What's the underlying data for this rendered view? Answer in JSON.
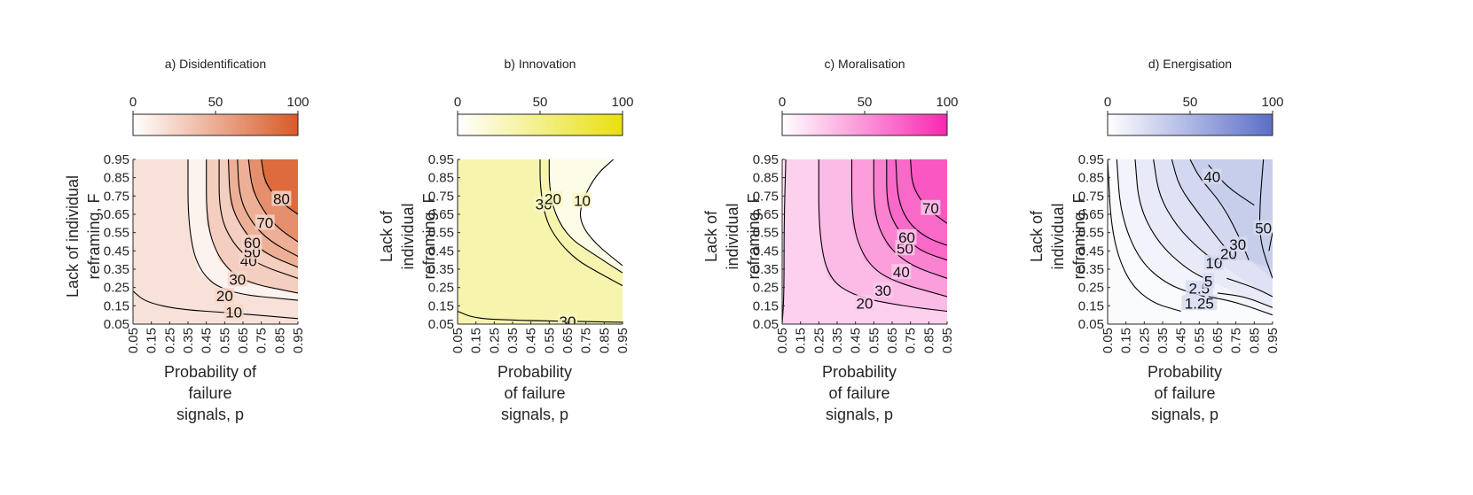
{
  "chart_data": [
    {
      "type": "heatmap",
      "subtype": "contour",
      "title": "a) Disidentification",
      "xlabel_lines": [
        "Probability of",
        "failure",
        "signals, p"
      ],
      "ylabel_lines": [
        "Lack of individual",
        "reframing, F"
      ],
      "x_ticks": [
        "0.05",
        "0.15",
        "0.25",
        "0.35",
        "0.45",
        "0.55",
        "0.65",
        "0.75",
        "0.85",
        "0.95"
      ],
      "y_ticks": [
        "0.05",
        "0.15",
        "0.25",
        "0.35",
        "0.45",
        "0.55",
        "0.65",
        "0.75",
        "0.85",
        "0.95"
      ],
      "xlim": [
        0.05,
        0.95
      ],
      "ylim": [
        0.05,
        0.95
      ],
      "colorbar": {
        "min": 0,
        "max": 100,
        "ticks": [
          "0",
          "50",
          "100"
        ],
        "low_color": "#ffffff",
        "high_color": "#d95a27"
      },
      "contour_levels": [
        {
          "level": 10,
          "points": [
            [
              0.05,
              0.23
            ],
            [
              0.12,
              0.17
            ],
            [
              0.3,
              0.13
            ],
            [
              0.6,
              0.11
            ],
            [
              0.95,
              0.08
            ]
          ],
          "label": "10",
          "label_at": [
            0.6,
            0.11
          ]
        },
        {
          "level": 20,
          "points": [
            [
              0.35,
              0.95
            ],
            [
              0.35,
              0.6
            ],
            [
              0.4,
              0.35
            ],
            [
              0.55,
              0.22
            ],
            [
              0.95,
              0.18
            ]
          ],
          "label": "20",
          "label_at": [
            0.55,
            0.2
          ]
        },
        {
          "level": 30,
          "points": [
            [
              0.45,
              0.95
            ],
            [
              0.45,
              0.6
            ],
            [
              0.52,
              0.4
            ],
            [
              0.65,
              0.28
            ],
            [
              0.95,
              0.22
            ]
          ],
          "label": "30",
          "label_at": [
            0.62,
            0.29
          ]
        },
        {
          "level": 40,
          "points": [
            [
              0.52,
              0.95
            ],
            [
              0.52,
              0.65
            ],
            [
              0.6,
              0.48
            ],
            [
              0.72,
              0.38
            ],
            [
              0.95,
              0.3
            ]
          ],
          "label": "40",
          "label_at": [
            0.68,
            0.39
          ]
        },
        {
          "level": 50,
          "points": [
            [
              0.57,
              0.95
            ],
            [
              0.58,
              0.7
            ],
            [
              0.66,
              0.55
            ],
            [
              0.76,
              0.44
            ],
            [
              0.95,
              0.36
            ]
          ],
          "label": "50",
          "label_at": [
            0.7,
            0.44
          ]
        },
        {
          "level": 60,
          "points": [
            [
              0.62,
              0.95
            ],
            [
              0.63,
              0.74
            ],
            [
              0.7,
              0.6
            ],
            [
              0.8,
              0.5
            ],
            [
              0.95,
              0.42
            ]
          ],
          "label": "60",
          "label_at": [
            0.7,
            0.49
          ]
        },
        {
          "level": 70,
          "points": [
            [
              0.68,
              0.95
            ],
            [
              0.7,
              0.78
            ],
            [
              0.78,
              0.64
            ],
            [
              0.86,
              0.56
            ],
            [
              0.95,
              0.5
            ]
          ],
          "label": "70",
          "label_at": [
            0.77,
            0.6
          ]
        },
        {
          "level": 80,
          "points": [
            [
              0.75,
              0.95
            ],
            [
              0.77,
              0.82
            ],
            [
              0.85,
              0.72
            ],
            [
              0.95,
              0.65
            ]
          ],
          "label": "80",
          "label_at": [
            0.86,
            0.73
          ]
        }
      ]
    },
    {
      "type": "heatmap",
      "subtype": "contour",
      "title": "b) Innovation",
      "xlabel_lines": [
        "Probability",
        "of failure",
        "signals, p"
      ],
      "ylabel_lines": [
        "Lack of",
        "individual",
        "reframing, F"
      ],
      "x_ticks": [
        "0.05",
        "0.15",
        "0.25",
        "0.35",
        "0.45",
        "0.55",
        "0.65",
        "0.75",
        "0.85",
        "0.95"
      ],
      "y_ticks": [
        "0.05",
        "0.15",
        "0.25",
        "0.35",
        "0.45",
        "0.55",
        "0.65",
        "0.75",
        "0.85",
        "0.95"
      ],
      "xlim": [
        0.05,
        0.95
      ],
      "ylim": [
        0.05,
        0.95
      ],
      "colorbar": {
        "min": 0,
        "max": 100,
        "ticks": [
          "0",
          "50",
          "100"
        ],
        "low_color": "#ffffff",
        "high_color": "#e8e010"
      },
      "contour_levels": [
        {
          "level": 30,
          "points": [
            [
              0.05,
              0.12
            ],
            [
              0.15,
              0.08
            ],
            [
              0.4,
              0.07
            ],
            [
              0.7,
              0.065
            ],
            [
              0.95,
              0.06
            ]
          ],
          "label": "30",
          "label_at": [
            0.65,
            0.06
          ]
        },
        {
          "level": 30,
          "points": [
            [
              0.5,
              0.95
            ],
            [
              0.5,
              0.8
            ],
            [
              0.53,
              0.62
            ],
            [
              0.6,
              0.5
            ],
            [
              0.7,
              0.4
            ],
            [
              0.82,
              0.33
            ],
            [
              0.95,
              0.26
            ]
          ],
          "label": "30",
          "label_at": [
            0.52,
            0.7
          ]
        },
        {
          "level": 20,
          "points": [
            [
              0.55,
              0.95
            ],
            [
              0.55,
              0.8
            ],
            [
              0.58,
              0.65
            ],
            [
              0.66,
              0.52
            ],
            [
              0.78,
              0.44
            ],
            [
              0.95,
              0.33
            ]
          ],
          "label": "20",
          "label_at": [
            0.57,
            0.73
          ]
        },
        {
          "level": 10,
          "points": [
            [
              0.9,
              0.95
            ],
            [
              0.8,
              0.86
            ],
            [
              0.72,
              0.7
            ],
            [
              0.72,
              0.6
            ],
            [
              0.8,
              0.49
            ],
            [
              0.95,
              0.37
            ]
          ],
          "label": "10",
          "label_at": [
            0.73,
            0.72
          ]
        }
      ]
    },
    {
      "type": "heatmap",
      "subtype": "contour",
      "title": "c) Moralisation",
      "xlabel_lines": [
        "Probability",
        "of failure",
        "signals, p"
      ],
      "ylabel_lines": [
        "Lack of",
        "individual",
        "reframing, F"
      ],
      "x_ticks": [
        "0.05",
        "0.15",
        "0.25",
        "0.35",
        "0.45",
        "0.55",
        "0.65",
        "0.75",
        "0.85",
        "0.95"
      ],
      "y_ticks": [
        "0.05",
        "0.15",
        "0.25",
        "0.35",
        "0.45",
        "0.55",
        "0.65",
        "0.75",
        "0.85",
        "0.95"
      ],
      "xlim": [
        0.05,
        0.95
      ],
      "ylim": [
        0.05,
        0.95
      ],
      "colorbar": {
        "min": 0,
        "max": 100,
        "ticks": [
          "0",
          "50",
          "100"
        ],
        "low_color": "#ffffff",
        "high_color": "#f728b0"
      },
      "contour_levels": [
        {
          "level": 10,
          "points": [
            [
              0.07,
              0.95
            ],
            [
              0.06,
              0.6
            ],
            [
              0.06,
              0.2
            ],
            [
              0.05,
              0.05
            ]
          ],
          "label": "",
          "label_at": null
        },
        {
          "level": 20,
          "points": [
            [
              0.25,
              0.95
            ],
            [
              0.25,
              0.55
            ],
            [
              0.3,
              0.3
            ],
            [
              0.45,
              0.2
            ],
            [
              0.7,
              0.15
            ],
            [
              0.95,
              0.12
            ]
          ],
          "label": "20",
          "label_at": [
            0.5,
            0.16
          ]
        },
        {
          "level": 30,
          "points": [
            [
              0.43,
              0.95
            ],
            [
              0.43,
              0.6
            ],
            [
              0.5,
              0.4
            ],
            [
              0.63,
              0.29
            ],
            [
              0.95,
              0.2
            ]
          ],
          "label": "30",
          "label_at": [
            0.6,
            0.23
          ]
        },
        {
          "level": 40,
          "points": [
            [
              0.55,
              0.95
            ],
            [
              0.55,
              0.65
            ],
            [
              0.62,
              0.48
            ],
            [
              0.75,
              0.37
            ],
            [
              0.95,
              0.3
            ]
          ],
          "label": "40",
          "label_at": [
            0.7,
            0.33
          ]
        },
        {
          "level": 50,
          "points": [
            [
              0.62,
              0.95
            ],
            [
              0.62,
              0.7
            ],
            [
              0.68,
              0.56
            ],
            [
              0.8,
              0.45
            ],
            [
              0.95,
              0.4
            ]
          ],
          "label": "50",
          "label_at": [
            0.72,
            0.46
          ]
        },
        {
          "level": 60,
          "points": [
            [
              0.67,
              0.95
            ],
            [
              0.68,
              0.73
            ],
            [
              0.74,
              0.6
            ],
            [
              0.84,
              0.52
            ],
            [
              0.95,
              0.48
            ]
          ],
          "label": "60",
          "label_at": [
            0.73,
            0.52
          ]
        },
        {
          "level": 70,
          "points": [
            [
              0.75,
              0.95
            ],
            [
              0.76,
              0.8
            ],
            [
              0.84,
              0.68
            ],
            [
              0.95,
              0.6
            ]
          ],
          "label": "70",
          "label_at": [
            0.86,
            0.68
          ]
        }
      ]
    },
    {
      "type": "heatmap",
      "subtype": "contour",
      "title": "d) Energisation",
      "xlabel_lines": [
        "Probability",
        "of failure",
        "signals, p"
      ],
      "ylabel_lines": [
        "Lack of",
        "individual",
        "reframing, F"
      ],
      "x_ticks": [
        "0.05",
        "0.15",
        "0.25",
        "0.35",
        "0.45",
        "0.55",
        "0.65",
        "0.75",
        "0.85",
        "0.95"
      ],
      "y_ticks": [
        "0.05",
        "0.15",
        "0.25",
        "0.35",
        "0.45",
        "0.55",
        "0.65",
        "0.75",
        "0.85",
        "0.95"
      ],
      "xlim": [
        0.05,
        0.95
      ],
      "ylim": [
        0.05,
        0.95
      ],
      "colorbar": {
        "min": 0,
        "max": 100,
        "ticks": [
          "0",
          "50",
          "100"
        ],
        "low_color": "#ffffff",
        "high_color": "#5b6ec8"
      },
      "contour_levels": [
        {
          "level": 1.25,
          "points": [
            [
              0.05,
              0.95
            ],
            [
              0.07,
              0.55
            ],
            [
              0.15,
              0.3
            ],
            [
              0.28,
              0.17
            ],
            [
              0.45,
              0.12
            ]
          ],
          "label": "1.25",
          "label_at": [
            0.55,
            0.16
          ]
        },
        {
          "level": 2.5,
          "points": [
            [
              0.1,
              0.95
            ],
            [
              0.12,
              0.65
            ],
            [
              0.22,
              0.4
            ],
            [
              0.38,
              0.26
            ],
            [
              0.58,
              0.2
            ]
          ],
          "label": "2.5",
          "label_at": [
            0.55,
            0.24
          ]
        },
        {
          "level": 5,
          "points": [
            [
              0.2,
              0.95
            ],
            [
              0.22,
              0.7
            ],
            [
              0.32,
              0.5
            ],
            [
              0.48,
              0.35
            ],
            [
              0.62,
              0.28
            ]
          ],
          "label": "5",
          "label_at": [
            0.6,
            0.28
          ]
        },
        {
          "level": 10,
          "points": [
            [
              0.3,
              0.95
            ],
            [
              0.33,
              0.75
            ],
            [
              0.43,
              0.58
            ],
            [
              0.56,
              0.45
            ],
            [
              0.66,
              0.38
            ]
          ],
          "label": "10",
          "label_at": [
            0.63,
            0.38
          ]
        },
        {
          "level": 20,
          "points": [
            [
              0.4,
              0.95
            ],
            [
              0.44,
              0.8
            ],
            [
              0.55,
              0.65
            ],
            [
              0.68,
              0.48
            ],
            [
              0.75,
              0.4
            ]
          ],
          "label": "20",
          "label_at": [
            0.71,
            0.43
          ]
        },
        {
          "level": 30,
          "points": [
            [
              0.5,
              0.95
            ],
            [
              0.55,
              0.85
            ],
            [
              0.68,
              0.7
            ],
            [
              0.78,
              0.5
            ],
            [
              0.82,
              0.4
            ]
          ],
          "label": "30",
          "label_at": [
            0.76,
            0.48
          ]
        },
        {
          "level": 40,
          "points": [
            [
              0.6,
              0.92
            ],
            [
              0.7,
              0.8
            ],
            [
              0.85,
              0.7
            ]
          ],
          "label": "40",
          "label_at": [
            0.62,
            0.85
          ]
        },
        {
          "level": 50,
          "points": [
            [
              0.9,
              0.95
            ],
            [
              0.88,
              0.7
            ],
            [
              0.88,
              0.5
            ],
            [
              0.95,
              0.3
            ]
          ],
          "label": "50",
          "label_at": [
            0.9,
            0.57
          ]
        },
        {
          "level": 60,
          "points": [
            [
              0.95,
              0.55
            ],
            [
              0.93,
              0.45
            ]
          ],
          "label": "",
          "label_at": null
        },
        {
          "level": 2.5,
          "points": [
            [
              0.6,
              0.2
            ],
            [
              0.75,
              0.17
            ],
            [
              0.95,
              0.1
            ]
          ],
          "label": "",
          "label_at": null
        },
        {
          "level": 5,
          "points": [
            [
              0.65,
              0.22
            ],
            [
              0.8,
              0.2
            ],
            [
              0.95,
              0.14
            ]
          ],
          "label": "",
          "label_at": null
        },
        {
          "level": 10,
          "points": [
            [
              0.7,
              0.3
            ],
            [
              0.85,
              0.25
            ],
            [
              0.95,
              0.2
            ]
          ],
          "label": "",
          "label_at": null
        }
      ]
    }
  ]
}
